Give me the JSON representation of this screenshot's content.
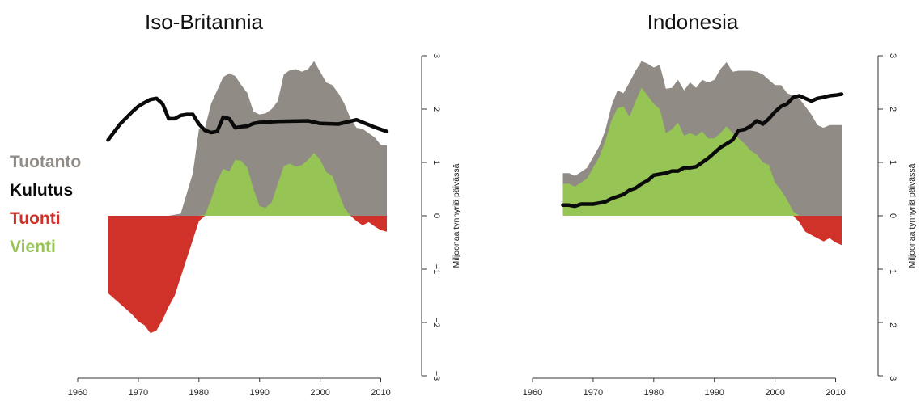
{
  "legend": [
    {
      "label": "Tuotanto",
      "color": "#918b86"
    },
    {
      "label": "Kulutus",
      "color": "#0a0a0a"
    },
    {
      "label": "Tuonti",
      "color": "#d0322a"
    },
    {
      "label": "Vienti",
      "color": "#96c455"
    }
  ],
  "colors": {
    "production": "#918b86",
    "consumption": "#0a0a0a",
    "imports": "#d0322a",
    "exports": "#96c455"
  },
  "chart_data": [
    {
      "type": "area",
      "title": "Iso-Britannia",
      "xlabel": "",
      "ylabel": "Miljoonaa tynnyriä päivässä",
      "xlim": [
        1960,
        2011
      ],
      "ylim": [
        -3,
        3
      ],
      "xticks": [
        "1960",
        "1970",
        "1980",
        "1990",
        "2000",
        "2010"
      ],
      "yticks": [
        "−3",
        "−2",
        "−1",
        "0",
        "1",
        "2",
        "3"
      ],
      "series": [
        {
          "name": "Tuotanto",
          "x": [
            1965,
            1972,
            1975,
            1977,
            1979,
            1980,
            1981,
            1982,
            1983,
            1984,
            1985,
            1986,
            1987,
            1988,
            1989,
            1990,
            1991,
            1992,
            1993,
            1994,
            1995,
            1996,
            1997,
            1998,
            1999,
            2000,
            2001,
            2002,
            2003,
            2004,
            2005,
            2006,
            2007,
            2008,
            2009,
            2010,
            2011
          ],
          "y": [
            0,
            0,
            0,
            0.04,
            0.8,
            1.62,
            1.65,
            2.1,
            2.35,
            2.6,
            2.67,
            2.62,
            2.45,
            2.3,
            1.95,
            1.9,
            1.92,
            2.0,
            2.15,
            2.65,
            2.73,
            2.75,
            2.7,
            2.75,
            2.9,
            2.7,
            2.5,
            2.45,
            2.3,
            2.1,
            1.82,
            1.65,
            1.63,
            1.55,
            1.47,
            1.33,
            1.32
          ]
        },
        {
          "name": "Vienti",
          "x": [
            1965,
            1980,
            1981,
            1982,
            1983,
            1984,
            1985,
            1986,
            1987,
            1988,
            1989,
            1990,
            1991,
            1992,
            1993,
            1994,
            1995,
            1996,
            1997,
            1998,
            1999,
            2000,
            2001,
            2002,
            2003,
            2004,
            2005,
            2011
          ],
          "y": [
            0,
            0,
            0.02,
            0.3,
            0.65,
            0.88,
            0.83,
            1.05,
            1.03,
            0.9,
            0.5,
            0.18,
            0.15,
            0.25,
            0.6,
            0.93,
            0.98,
            0.92,
            0.95,
            1.05,
            1.18,
            1.05,
            0.82,
            0.75,
            0.45,
            0.15,
            0,
            0
          ]
        },
        {
          "name": "Tuonti",
          "x": [
            1965,
            1967,
            1969,
            1970,
            1971,
            1972,
            1973,
            1974,
            1975,
            1976,
            1977,
            1978,
            1979,
            1980,
            1981,
            2005,
            2006,
            2007,
            2008,
            2009,
            2010,
            2011
          ],
          "y": [
            -1.45,
            -1.65,
            -1.85,
            -1.98,
            -2.05,
            -2.2,
            -2.15,
            -1.95,
            -1.7,
            -1.5,
            -1.15,
            -0.8,
            -0.45,
            -0.1,
            0,
            0,
            -0.1,
            -0.18,
            -0.12,
            -0.2,
            -0.27,
            -0.3
          ]
        },
        {
          "name": "Kulutus",
          "x": [
            1965,
            1967,
            1969,
            1970,
            1971,
            1972,
            1973,
            1974,
            1975,
            1976,
            1977,
            1978,
            1979,
            1980,
            1981,
            1982,
            1983,
            1984,
            1985,
            1986,
            1987,
            1988,
            1989,
            1990,
            1993,
            1998,
            2000,
            2003,
            2006,
            2009,
            2011
          ],
          "y": [
            1.42,
            1.72,
            1.95,
            2.05,
            2.12,
            2.18,
            2.2,
            2.1,
            1.82,
            1.82,
            1.88,
            1.9,
            1.9,
            1.72,
            1.6,
            1.56,
            1.58,
            1.85,
            1.82,
            1.65,
            1.67,
            1.68,
            1.73,
            1.75,
            1.77,
            1.78,
            1.73,
            1.72,
            1.8,
            1.66,
            1.58
          ]
        }
      ]
    },
    {
      "type": "area",
      "title": "Indonesia",
      "xlabel": "",
      "ylabel": "Miljoonaa tynnyriä päivässä",
      "xlim": [
        1960,
        2011
      ],
      "ylim": [
        -3,
        3
      ],
      "xticks": [
        "1960",
        "1970",
        "1980",
        "1990",
        "2000",
        "2010"
      ],
      "yticks": [
        "−3",
        "−2",
        "−1",
        "0",
        "1",
        "2",
        "3"
      ],
      "series": [
        {
          "name": "Tuotanto",
          "x": [
            1965,
            1966,
            1967,
            1968,
            1969,
            1970,
            1971,
            1972,
            1973,
            1974,
            1975,
            1976,
            1977,
            1978,
            1979,
            1980,
            1981,
            1982,
            1983,
            1984,
            1985,
            1986,
            1987,
            1988,
            1989,
            1990,
            1991,
            1992,
            1993,
            1994,
            1995,
            1996,
            1997,
            1998,
            1999,
            2000,
            2001,
            2002,
            2003,
            2004,
            2005,
            2006,
            2007,
            2008,
            2009,
            2010,
            2011
          ],
          "y": [
            0.8,
            0.8,
            0.75,
            0.82,
            0.9,
            1.1,
            1.3,
            1.6,
            2.05,
            2.35,
            2.3,
            2.5,
            2.72,
            2.9,
            2.85,
            2.78,
            2.83,
            2.38,
            2.4,
            2.55,
            2.35,
            2.5,
            2.4,
            2.55,
            2.5,
            2.55,
            2.75,
            2.88,
            2.7,
            2.72,
            2.72,
            2.72,
            2.7,
            2.65,
            2.55,
            2.45,
            2.45,
            2.3,
            2.25,
            2.2,
            2.05,
            1.9,
            1.7,
            1.65,
            1.7,
            1.7,
            1.7
          ]
        },
        {
          "name": "Vienti",
          "x": [
            1965,
            1966,
            1967,
            1968,
            1969,
            1970,
            1971,
            1972,
            1973,
            1974,
            1975,
            1976,
            1977,
            1978,
            1979,
            1980,
            1981,
            1982,
            1983,
            1984,
            1985,
            1986,
            1987,
            1988,
            1989,
            1990,
            1991,
            1992,
            1993,
            1994,
            1995,
            1996,
            1997,
            1998,
            1999,
            2000,
            2001,
            2002,
            2003,
            2004,
            2011
          ],
          "y": [
            0.6,
            0.6,
            0.55,
            0.62,
            0.7,
            0.9,
            1.1,
            1.4,
            1.78,
            2.02,
            2.05,
            1.85,
            2.15,
            2.4,
            2.25,
            2.1,
            2.0,
            1.55,
            1.62,
            1.75,
            1.5,
            1.55,
            1.5,
            1.58,
            1.45,
            1.45,
            1.55,
            1.68,
            1.55,
            1.45,
            1.35,
            1.22,
            1.15,
            1.0,
            0.95,
            0.62,
            0.48,
            0.3,
            0.08,
            0,
            0
          ]
        },
        {
          "name": "Tuonti",
          "x": [
            1965,
            2003,
            2004,
            2005,
            2006,
            2007,
            2008,
            2009,
            2010,
            2011
          ],
          "y": [
            0,
            0,
            -0.12,
            -0.3,
            -0.36,
            -0.42,
            -0.48,
            -0.42,
            -0.5,
            -0.55
          ]
        },
        {
          "name": "Kulutus",
          "x": [
            1965,
            1966,
            1967,
            1968,
            1969,
            1970,
            1971,
            1972,
            1973,
            1974,
            1975,
            1976,
            1977,
            1978,
            1979,
            1980,
            1981,
            1982,
            1983,
            1984,
            1985,
            1986,
            1987,
            1988,
            1989,
            1990,
            1991,
            1992,
            1993,
            1994,
            1995,
            1996,
            1997,
            1998,
            1999,
            2000,
            2001,
            2002,
            2003,
            2004,
            2005,
            2006,
            2007,
            2008,
            2009,
            2010,
            2011
          ],
          "y": [
            0.2,
            0.2,
            0.18,
            0.22,
            0.22,
            0.22,
            0.24,
            0.26,
            0.32,
            0.36,
            0.4,
            0.48,
            0.52,
            0.6,
            0.66,
            0.76,
            0.78,
            0.8,
            0.84,
            0.84,
            0.9,
            0.9,
            0.92,
            1.0,
            1.08,
            1.18,
            1.28,
            1.35,
            1.42,
            1.6,
            1.62,
            1.68,
            1.78,
            1.72,
            1.82,
            1.95,
            2.05,
            2.1,
            2.22,
            2.25,
            2.2,
            2.15,
            2.2,
            2.22,
            2.25,
            2.26,
            2.28
          ]
        }
      ]
    }
  ]
}
